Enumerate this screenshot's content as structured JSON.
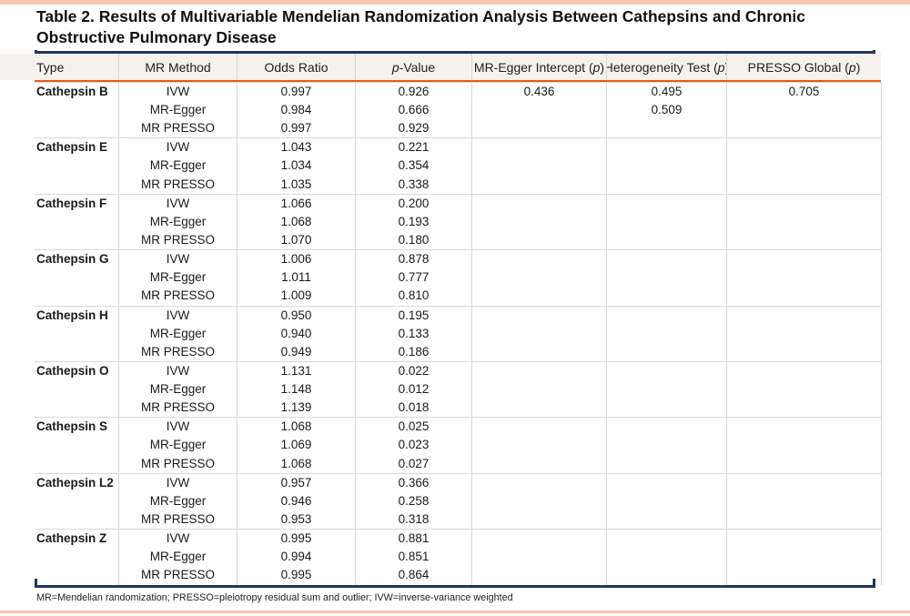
{
  "page": {
    "accent_navy": "#20365c",
    "accent_orange": "#e8591d",
    "edge_border_color": "#f9c7ae",
    "header_bg": "#f5f1ef"
  },
  "title": "Table 2. Results of Multivariable Mendelian Randomization Analysis Between Cathepsins and Chronic Obstructive Pulmonary Disease",
  "header": {
    "columns": [
      {
        "pre": "Type",
        "it": "",
        "post": ""
      },
      {
        "pre": "MR Method",
        "it": "",
        "post": ""
      },
      {
        "pre": "Odds Ratio",
        "it": "",
        "post": ""
      },
      {
        "pre": "",
        "it": "p",
        "post": "-Value"
      },
      {
        "pre": "MR-Egger Intercept (",
        "it": "p",
        "post": ")"
      },
      {
        "pre": "Heterogeneity Test (",
        "it": "p",
        "post": ")"
      },
      {
        "pre": "PRESSO Global (",
        "it": "p",
        "post": ")"
      }
    ]
  },
  "table": {
    "groups": [
      {
        "type": "Cathepsin B",
        "rows": [
          {
            "method": "IVW",
            "odds_ratio": "0.997",
            "p_value": "0.926",
            "mr_egger_intercept_p": "0.436",
            "heterogeneity_p": "0.495",
            "presso_global_p": "0.705"
          },
          {
            "method": "MR-Egger",
            "odds_ratio": "0.984",
            "p_value": "0.666",
            "mr_egger_intercept_p": "",
            "heterogeneity_p": "0.509",
            "presso_global_p": ""
          },
          {
            "method": "MR PRESSO",
            "odds_ratio": "0.997",
            "p_value": "0.929",
            "mr_egger_intercept_p": "",
            "heterogeneity_p": "",
            "presso_global_p": ""
          }
        ]
      },
      {
        "type": "Cathepsin E",
        "rows": [
          {
            "method": "IVW",
            "odds_ratio": "1.043",
            "p_value": "0.221",
            "mr_egger_intercept_p": "",
            "heterogeneity_p": "",
            "presso_global_p": ""
          },
          {
            "method": "MR-Egger",
            "odds_ratio": "1.034",
            "p_value": "0.354",
            "mr_egger_intercept_p": "",
            "heterogeneity_p": "",
            "presso_global_p": ""
          },
          {
            "method": "MR PRESSO",
            "odds_ratio": "1.035",
            "p_value": "0.338",
            "mr_egger_intercept_p": "",
            "heterogeneity_p": "",
            "presso_global_p": ""
          }
        ]
      },
      {
        "type": "Cathepsin F",
        "rows": [
          {
            "method": "IVW",
            "odds_ratio": "1.066",
            "p_value": "0.200",
            "mr_egger_intercept_p": "",
            "heterogeneity_p": "",
            "presso_global_p": ""
          },
          {
            "method": "MR-Egger",
            "odds_ratio": "1.068",
            "p_value": "0.193",
            "mr_egger_intercept_p": "",
            "heterogeneity_p": "",
            "presso_global_p": ""
          },
          {
            "method": "MR PRESSO",
            "odds_ratio": "1.070",
            "p_value": "0.180",
            "mr_egger_intercept_p": "",
            "heterogeneity_p": "",
            "presso_global_p": ""
          }
        ]
      },
      {
        "type": "Cathepsin G",
        "rows": [
          {
            "method": "IVW",
            "odds_ratio": "1.006",
            "p_value": "0.878",
            "mr_egger_intercept_p": "",
            "heterogeneity_p": "",
            "presso_global_p": ""
          },
          {
            "method": "MR-Egger",
            "odds_ratio": "1.011",
            "p_value": "0.777",
            "mr_egger_intercept_p": "",
            "heterogeneity_p": "",
            "presso_global_p": ""
          },
          {
            "method": "MR PRESSO",
            "odds_ratio": "1.009",
            "p_value": "0.810",
            "mr_egger_intercept_p": "",
            "heterogeneity_p": "",
            "presso_global_p": ""
          }
        ]
      },
      {
        "type": "Cathepsin H",
        "rows": [
          {
            "method": "IVW",
            "odds_ratio": "0.950",
            "p_value": "0.195",
            "mr_egger_intercept_p": "",
            "heterogeneity_p": "",
            "presso_global_p": ""
          },
          {
            "method": "MR-Egger",
            "odds_ratio": "0.940",
            "p_value": "0.133",
            "mr_egger_intercept_p": "",
            "heterogeneity_p": "",
            "presso_global_p": ""
          },
          {
            "method": "MR PRESSO",
            "odds_ratio": "0.949",
            "p_value": "0.186",
            "mr_egger_intercept_p": "",
            "heterogeneity_p": "",
            "presso_global_p": ""
          }
        ]
      },
      {
        "type": "Cathepsin O",
        "rows": [
          {
            "method": "IVW",
            "odds_ratio": "1.131",
            "p_value": "0.022",
            "mr_egger_intercept_p": "",
            "heterogeneity_p": "",
            "presso_global_p": ""
          },
          {
            "method": "MR-Egger",
            "odds_ratio": "1.148",
            "p_value": "0.012",
            "mr_egger_intercept_p": "",
            "heterogeneity_p": "",
            "presso_global_p": ""
          },
          {
            "method": "MR PRESSO",
            "odds_ratio": "1.139",
            "p_value": "0.018",
            "mr_egger_intercept_p": "",
            "heterogeneity_p": "",
            "presso_global_p": ""
          }
        ]
      },
      {
        "type": "Cathepsin S",
        "rows": [
          {
            "method": "IVW",
            "odds_ratio": "1.068",
            "p_value": "0.025",
            "mr_egger_intercept_p": "",
            "heterogeneity_p": "",
            "presso_global_p": ""
          },
          {
            "method": "MR-Egger",
            "odds_ratio": "1.069",
            "p_value": "0.023",
            "mr_egger_intercept_p": "",
            "heterogeneity_p": "",
            "presso_global_p": ""
          },
          {
            "method": "MR PRESSO",
            "odds_ratio": "1.068",
            "p_value": "0.027",
            "mr_egger_intercept_p": "",
            "heterogeneity_p": "",
            "presso_global_p": ""
          }
        ]
      },
      {
        "type": "Cathepsin L2",
        "rows": [
          {
            "method": "IVW",
            "odds_ratio": "0.957",
            "p_value": "0.366",
            "mr_egger_intercept_p": "",
            "heterogeneity_p": "",
            "presso_global_p": ""
          },
          {
            "method": "MR-Egger",
            "odds_ratio": "0.946",
            "p_value": "0.258",
            "mr_egger_intercept_p": "",
            "heterogeneity_p": "",
            "presso_global_p": ""
          },
          {
            "method": "MR PRESSO",
            "odds_ratio": "0.953",
            "p_value": "0.318",
            "mr_egger_intercept_p": "",
            "heterogeneity_p": "",
            "presso_global_p": ""
          }
        ]
      },
      {
        "type": "Cathepsin Z",
        "rows": [
          {
            "method": "IVW",
            "odds_ratio": "0.995",
            "p_value": "0.881",
            "mr_egger_intercept_p": "",
            "heterogeneity_p": "",
            "presso_global_p": ""
          },
          {
            "method": "MR-Egger",
            "odds_ratio": "0.994",
            "p_value": "0.851",
            "mr_egger_intercept_p": "",
            "heterogeneity_p": "",
            "presso_global_p": ""
          },
          {
            "method": "MR PRESSO",
            "odds_ratio": "0.995",
            "p_value": "0.864",
            "mr_egger_intercept_p": "",
            "heterogeneity_p": "",
            "presso_global_p": ""
          }
        ]
      }
    ]
  },
  "footnote": "MR=Mendelian randomization; PRESSO=pleiotropy residual sum and outlier; IVW=inverse-variance weighted"
}
